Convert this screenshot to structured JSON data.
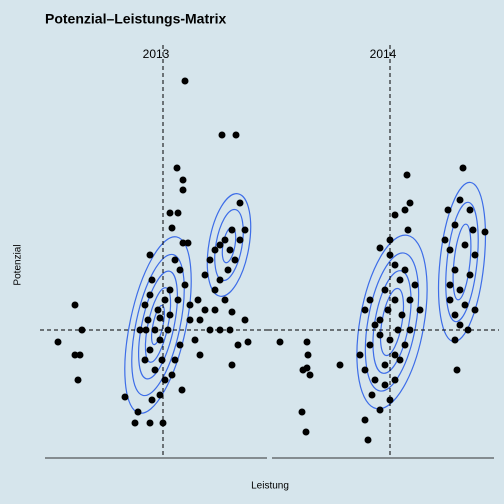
{
  "title": "Potenzial–Leistungs-Matrix",
  "x_label": "Leistung",
  "y_label": "Potenzial",
  "chart_data": [
    {
      "type": "scatter",
      "title": "2013",
      "color": "#000000",
      "xlim": [
        0,
        222
      ],
      "ylim": [
        0,
        420
      ],
      "vline": 118,
      "hline": 128,
      "x": [
        140,
        177,
        191,
        132,
        138,
        138,
        125,
        133,
        195,
        127,
        138,
        143,
        105,
        100,
        30,
        13,
        37,
        30,
        35,
        33,
        80,
        93,
        90,
        105,
        118,
        101,
        110,
        115,
        120,
        125,
        107,
        135,
        130,
        115,
        105,
        100,
        110,
        120,
        130,
        135,
        123,
        113,
        105,
        125,
        133,
        140,
        145,
        150,
        155,
        95,
        103,
        117,
        127,
        137,
        107,
        115,
        145,
        153,
        160,
        165,
        170,
        175,
        180,
        185,
        190,
        183,
        175,
        170,
        180,
        187,
        195,
        200,
        187,
        165,
        175,
        185,
        187,
        193,
        203,
        200,
        170,
        160,
        155
      ],
      "y": [
        377,
        323,
        323,
        290,
        278,
        268,
        245,
        245,
        255,
        230,
        215,
        215,
        203,
        153,
        153,
        116,
        128,
        103,
        103,
        78,
        61,
        46,
        35,
        35,
        35,
        128,
        128,
        140,
        158,
        168,
        178,
        188,
        198,
        118,
        108,
        98,
        88,
        78,
        98,
        113,
        128,
        148,
        163,
        143,
        158,
        173,
        138,
        118,
        103,
        128,
        138,
        98,
        83,
        68,
        58,
        63,
        153,
        158,
        183,
        198,
        208,
        213,
        218,
        208,
        198,
        188,
        178,
        168,
        158,
        146,
        218,
        228,
        228,
        128,
        128,
        128,
        93,
        113,
        116,
        138,
        148,
        148,
        138
      ]
    },
    {
      "type": "scatter",
      "title": "2014",
      "color": "#000000",
      "xlim": [
        0,
        222
      ],
      "ylim": [
        0,
        420
      ],
      "vline": 118,
      "hline": 128,
      "x": [
        191,
        135,
        138,
        133,
        123,
        136,
        118,
        108,
        118,
        123,
        128,
        113,
        98,
        93,
        103,
        108,
        98,
        88,
        93,
        103,
        113,
        100,
        108,
        93,
        96,
        118,
        123,
        128,
        133,
        138,
        130,
        123,
        116,
        108,
        118,
        123,
        113,
        126,
        138,
        143,
        133,
        148,
        176,
        188,
        198,
        201,
        213,
        183,
        193,
        203,
        178,
        183,
        198,
        188,
        178,
        193,
        203,
        183,
        196,
        183,
        185,
        188,
        178,
        173,
        8,
        35,
        35,
        31,
        38,
        36,
        30,
        34,
        68
      ],
      "y": [
        290,
        283,
        255,
        248,
        243,
        228,
        218,
        210,
        203,
        193,
        178,
        168,
        158,
        148,
        133,
        123,
        113,
        103,
        88,
        78,
        73,
        63,
        48,
        38,
        18,
        58,
        78,
        98,
        113,
        128,
        143,
        158,
        148,
        138,
        118,
        103,
        93,
        128,
        158,
        173,
        188,
        148,
        248,
        258,
        248,
        228,
        226,
        233,
        213,
        203,
        208,
        188,
        183,
        168,
        158,
        153,
        148,
        143,
        128,
        118,
        88,
        133,
        173,
        218,
        116,
        116,
        90,
        88,
        83,
        103,
        46,
        26,
        93
      ]
    }
  ]
}
